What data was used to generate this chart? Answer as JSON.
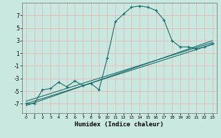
{
  "xlabel": "Humidex (Indice chaleur)",
  "bg_color": "#c8e8e0",
  "line_color": "#1a6b6b",
  "grid_color": "#e8b8b8",
  "xlim": [
    -0.5,
    23.5
  ],
  "ylim": [
    -8.5,
    9.0
  ],
  "yticks": [
    -7,
    -5,
    -3,
    -1,
    1,
    3,
    5,
    7
  ],
  "xticks": [
    0,
    1,
    2,
    3,
    4,
    5,
    6,
    7,
    8,
    9,
    10,
    11,
    12,
    13,
    14,
    15,
    16,
    17,
    18,
    19,
    20,
    21,
    22,
    23
  ],
  "main_line_x": [
    0,
    1,
    2,
    3,
    4,
    5,
    6,
    7,
    8,
    9,
    10,
    11,
    12,
    13,
    14,
    15,
    16,
    17,
    18,
    19,
    20,
    21,
    22,
    23
  ],
  "main_line_y": [
    -7,
    -7,
    -4.8,
    -4.6,
    -3.6,
    -4.3,
    -3.4,
    -4.1,
    -3.8,
    -4.8,
    0.2,
    6.0,
    7.2,
    8.3,
    8.5,
    8.3,
    7.8,
    6.3,
    3.0,
    2.0,
    2.0,
    1.7,
    2.0,
    2.5
  ],
  "reg_line1_x": [
    0,
    23
  ],
  "reg_line1_y": [
    -7.0,
    2.4
  ],
  "reg_line2_x": [
    0,
    23
  ],
  "reg_line2_y": [
    -6.6,
    2.7
  ],
  "reg_line3_x": [
    0,
    23
  ],
  "reg_line3_y": [
    -7.3,
    3.0
  ]
}
